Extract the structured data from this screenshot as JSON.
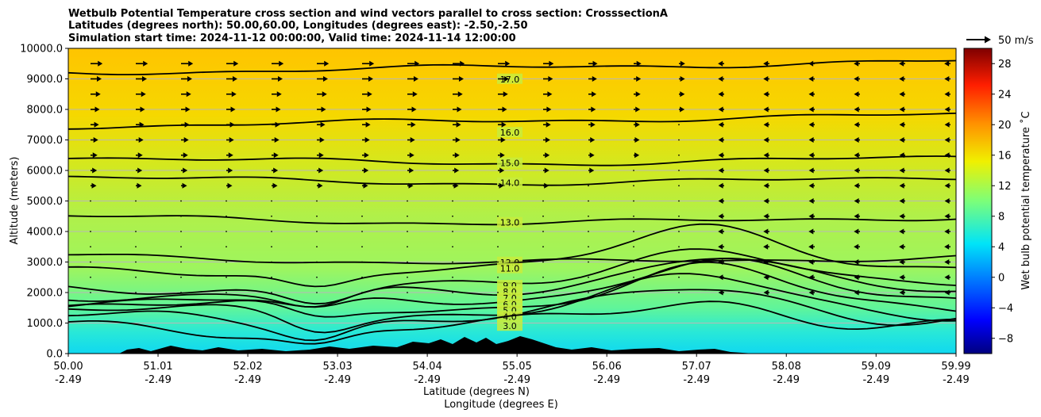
{
  "chart_data": {
    "type": "heatmap",
    "title_lines": [
      "Wetbulb Potential Temperature cross section and wind vectors parallel to cross section: CrosssectionA",
      "Latitudes (degrees north): 50.00,60.00, Longitudes (degrees east): -2.50,-2.50",
      "Simulation start time: 2024-11-12 00:00:00, Valid time: 2024-11-14 12:00:00"
    ],
    "ylabel": "Altitude (meters)",
    "xlabel_lines": [
      "Latitude (degrees N)",
      "Longitude (degrees E)"
    ],
    "x_ticks": [
      {
        "lat": "50.00",
        "lon": "-2.49"
      },
      {
        "lat": "51.01",
        "lon": "-2.49"
      },
      {
        "lat": "52.02",
        "lon": "-2.49"
      },
      {
        "lat": "53.03",
        "lon": "-2.49"
      },
      {
        "lat": "54.04",
        "lon": "-2.49"
      },
      {
        "lat": "55.05",
        "lon": "-2.49"
      },
      {
        "lat": "56.06",
        "lon": "-2.49"
      },
      {
        "lat": "57.07",
        "lon": "-2.49"
      },
      {
        "lat": "58.08",
        "lon": "-2.49"
      },
      {
        "lat": "59.09",
        "lon": "-2.49"
      },
      {
        "lat": "59.99",
        "lon": "-2.49"
      }
    ],
    "xlim": [
      50.0,
      59.99
    ],
    "y_ticks": [
      "0.0",
      "1000.0",
      "2000.0",
      "3000.0",
      "4000.0",
      "5000.0",
      "6000.0",
      "7000.0",
      "8000.0",
      "9000.0",
      "10000.0"
    ],
    "ylim": [
      0,
      10000
    ],
    "grid": "horizontal",
    "colorbar": {
      "label": "Wet bulb potential temperature $^\\circ$C",
      "label_display": "Wet bulb potential temperature ˚C",
      "ticks": [
        "−8",
        "−4",
        "0",
        "4",
        "8",
        "12",
        "16",
        "20",
        "24",
        "28"
      ],
      "min": -10,
      "max": 30
    },
    "quiver_key": "50 m/s",
    "contour_levels": [
      {
        "value": 17.0,
        "label": "17.0",
        "alt_m": 9200
      },
      {
        "value": 16.0,
        "label": "16.0",
        "alt_m": 7450
      },
      {
        "value": 15.0,
        "label": "15.0",
        "alt_m": 6450
      },
      {
        "value": 14.0,
        "label": "14.0",
        "alt_m": 5800
      },
      {
        "value": 13.0,
        "label": "13.0",
        "alt_m": 4500
      },
      {
        "value": 12.0,
        "label": "12.0",
        "alt_m": 3200
      },
      {
        "value": 11.0,
        "label": "11.0",
        "alt_m": 2700
      },
      {
        "value": 9.0,
        "label": "9.0",
        "alt_m": 2150
      },
      {
        "value": 8.0,
        "label": "8.0",
        "alt_m": 1950
      },
      {
        "value": 7.0,
        "label": "7.0",
        "alt_m": 1750
      },
      {
        "value": 6.0,
        "label": "6.0",
        "alt_m": 1550
      },
      {
        "value": 5.0,
        "label": "5.0",
        "alt_m": 1350
      },
      {
        "value": 4.0,
        "label": "4.0",
        "alt_m": 1150
      },
      {
        "value": 3.0,
        "label": "3.0",
        "alt_m": 850
      }
    ],
    "wind_u_profile_ms": [
      {
        "alt_m": 9500,
        "u_west": 20,
        "u_east": -4
      },
      {
        "alt_m": 8000,
        "u_west": 12,
        "u_east": -3
      },
      {
        "alt_m": 6500,
        "u_west": 6,
        "u_east": -3
      },
      {
        "alt_m": 5000,
        "u_west": 2,
        "u_east": -3
      },
      {
        "alt_m": 3500,
        "u_west": 1,
        "u_east": -4
      },
      {
        "alt_m": 2000,
        "u_west": 0,
        "u_east": -3
      }
    ]
  }
}
